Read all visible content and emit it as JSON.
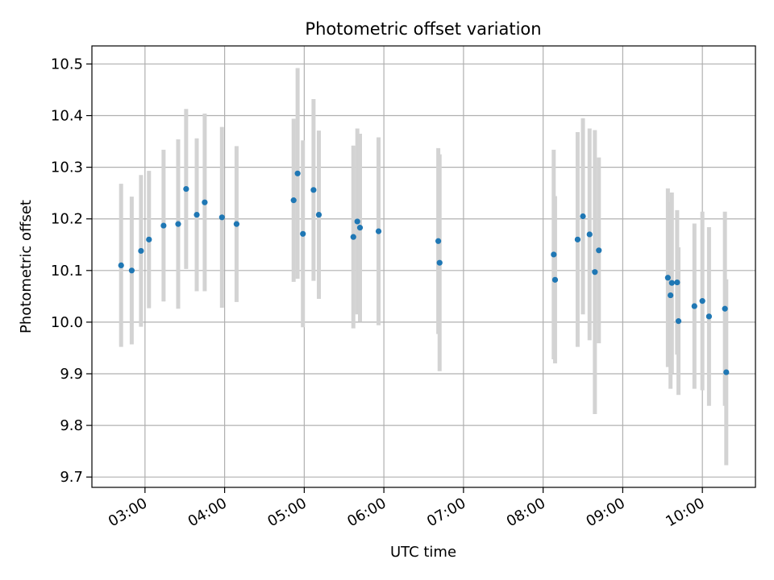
{
  "chart_data": {
    "type": "scatter",
    "title": "Photometric offset variation",
    "xlabel": "UTC time",
    "ylabel": "Photometric offset",
    "x_unit": "UTC time (HH:MM)",
    "xlim": [
      "02:20",
      "10:40"
    ],
    "ylim": [
      9.68,
      10.535
    ],
    "x_ticks": [
      "03:00",
      "04:00",
      "05:00",
      "06:00",
      "07:00",
      "08:00",
      "09:00",
      "10:00"
    ],
    "y_ticks": [
      9.7,
      9.8,
      9.9,
      10.0,
      10.1,
      10.2,
      10.3,
      10.4,
      10.5
    ],
    "y_tick_labels": [
      "9.7",
      "9.8",
      "9.9",
      "10.0",
      "10.1",
      "10.2",
      "10.3",
      "10.4",
      "10.5"
    ],
    "grid": true,
    "legend": "none",
    "point_color": "#1f77b4",
    "errorbar_color": "#d3d3d3",
    "points": [
      {
        "x": "02:42",
        "y": 10.11,
        "err": 0.158
      },
      {
        "x": "02:50",
        "y": 10.1,
        "err": 0.143
      },
      {
        "x": "02:57",
        "y": 10.138,
        "err": 0.147
      },
      {
        "x": "03:03",
        "y": 10.16,
        "err": 0.133
      },
      {
        "x": "03:14",
        "y": 10.187,
        "err": 0.147
      },
      {
        "x": "03:25",
        "y": 10.19,
        "err": 0.164
      },
      {
        "x": "03:31",
        "y": 10.258,
        "err": 0.155
      },
      {
        "x": "03:39",
        "y": 10.208,
        "err": 0.148
      },
      {
        "x": "03:45",
        "y": 10.232,
        "err": 0.172
      },
      {
        "x": "03:58",
        "y": 10.203,
        "err": 0.175
      },
      {
        "x": "04:09",
        "y": 10.19,
        "err": 0.151
      },
      {
        "x": "04:52",
        "y": 10.236,
        "err": 0.158
      },
      {
        "x": "04:55",
        "y": 10.288,
        "err": 0.204
      },
      {
        "x": "04:59",
        "y": 10.171,
        "err": 0.181
      },
      {
        "x": "05:07",
        "y": 10.256,
        "err": 0.176
      },
      {
        "x": "05:11",
        "y": 10.208,
        "err": 0.163
      },
      {
        "x": "05:37",
        "y": 10.165,
        "err": 0.177
      },
      {
        "x": "05:40",
        "y": 10.195,
        "err": 0.18
      },
      {
        "x": "05:42",
        "y": 10.183,
        "err": 0.182
      },
      {
        "x": "05:56",
        "y": 10.176,
        "err": 0.182
      },
      {
        "x": "06:41",
        "y": 10.157,
        "err": 0.18
      },
      {
        "x": "06:42",
        "y": 10.115,
        "err": 0.21
      },
      {
        "x": "08:08",
        "y": 10.131,
        "err": 0.203
      },
      {
        "x": "08:09",
        "y": 10.082,
        "err": 0.162
      },
      {
        "x": "08:26",
        "y": 10.16,
        "err": 0.208
      },
      {
        "x": "08:30",
        "y": 10.205,
        "err": 0.19
      },
      {
        "x": "08:35",
        "y": 10.17,
        "err": 0.205
      },
      {
        "x": "08:39",
        "y": 10.097,
        "err": 0.275
      },
      {
        "x": "08:42",
        "y": 10.139,
        "err": 0.18
      },
      {
        "x": "09:34",
        "y": 10.086,
        "err": 0.173
      },
      {
        "x": "09:36",
        "y": 10.052,
        "err": 0.181
      },
      {
        "x": "09:37",
        "y": 10.076,
        "err": 0.175
      },
      {
        "x": "09:41",
        "y": 10.077,
        "err": 0.14
      },
      {
        "x": "09:42",
        "y": 10.002,
        "err": 0.143
      },
      {
        "x": "09:54",
        "y": 10.031,
        "err": 0.16
      },
      {
        "x": "10:00",
        "y": 10.041,
        "err": 0.173
      },
      {
        "x": "10:05",
        "y": 10.011,
        "err": 0.173
      },
      {
        "x": "10:17",
        "y": 10.026,
        "err": 0.188
      },
      {
        "x": "10:18",
        "y": 9.903,
        "err": 0.18
      }
    ]
  }
}
